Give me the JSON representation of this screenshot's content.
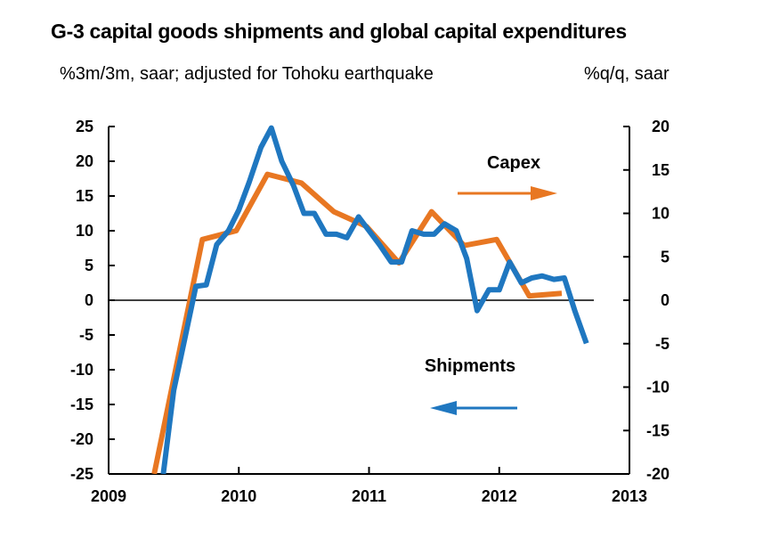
{
  "chart_data": {
    "type": "line",
    "title": "G-3 capital goods shipments and global capital expenditures",
    "left_axis_label": "%3m/3m, saar; adjusted for Tohoku earthquake",
    "right_axis_label": "%q/q, saar",
    "x_ticks": [
      "2009",
      "2010",
      "2011",
      "2012",
      "2013"
    ],
    "xlim": [
      2009,
      2013
    ],
    "left_ylim": [
      -25,
      25
    ],
    "left_ticks": [
      "25",
      "20",
      "15",
      "10",
      "5",
      "0",
      "-5",
      "-10",
      "-15",
      "-20",
      "-25"
    ],
    "right_ylim": [
      -20,
      20
    ],
    "right_ticks": [
      "20",
      "15",
      "10",
      "5",
      "0",
      "-5",
      "-10",
      "-15",
      "-20"
    ],
    "zero_line": true,
    "grid": false,
    "series": [
      {
        "name": "Shipments",
        "axis": "left",
        "color": "#1f77c0",
        "x": [
          2009.42,
          2009.5,
          2009.58,
          2009.67,
          2009.75,
          2009.83,
          2009.92,
          2010.0,
          2010.08,
          2010.17,
          2010.25,
          2010.33,
          2010.42,
          2010.5,
          2010.58,
          2010.67,
          2010.75,
          2010.83,
          2010.92,
          2011.0,
          2011.08,
          2011.17,
          2011.25,
          2011.33,
          2011.42,
          2011.5,
          2011.58,
          2011.67,
          2011.75,
          2011.83,
          2011.92,
          2012.0,
          2012.08,
          2012.17,
          2012.25,
          2012.33,
          2012.42,
          2012.5,
          2012.58,
          2012.67
        ],
        "values": [
          -25,
          -13,
          -6,
          2,
          2.2,
          8,
          10,
          13,
          17,
          22,
          24.8,
          20,
          16.5,
          12.5,
          12.5,
          9.5,
          9.5,
          9,
          12,
          10,
          8,
          5.5,
          5.5,
          10,
          9.5,
          9.5,
          11,
          10,
          6,
          -1.5,
          1.5,
          1.5,
          5.5,
          2.5,
          3.2,
          3.5,
          3,
          3.2,
          -1.5,
          -6.2
        ]
      },
      {
        "name": "Capex",
        "axis": "right",
        "color": "#e87722",
        "x": [
          2009.35,
          2009.72,
          2009.98,
          2010.22,
          2010.48,
          2010.73,
          2010.98,
          2011.23,
          2011.48,
          2011.73,
          2011.98,
          2012.23,
          2012.48
        ],
        "values": [
          -20,
          7,
          8,
          14.5,
          13.5,
          10.2,
          8.5,
          4.3,
          10.2,
          6.3,
          7,
          0.5,
          0.8
        ]
      }
    ],
    "annotations": [
      {
        "text": "Capex",
        "arrow": "right",
        "color": "#e87722",
        "axis": "right",
        "points_to": "right axis"
      },
      {
        "text": "Shipments",
        "arrow": "left",
        "color": "#1f77c0",
        "axis": "left",
        "points_to": "left axis"
      }
    ]
  }
}
